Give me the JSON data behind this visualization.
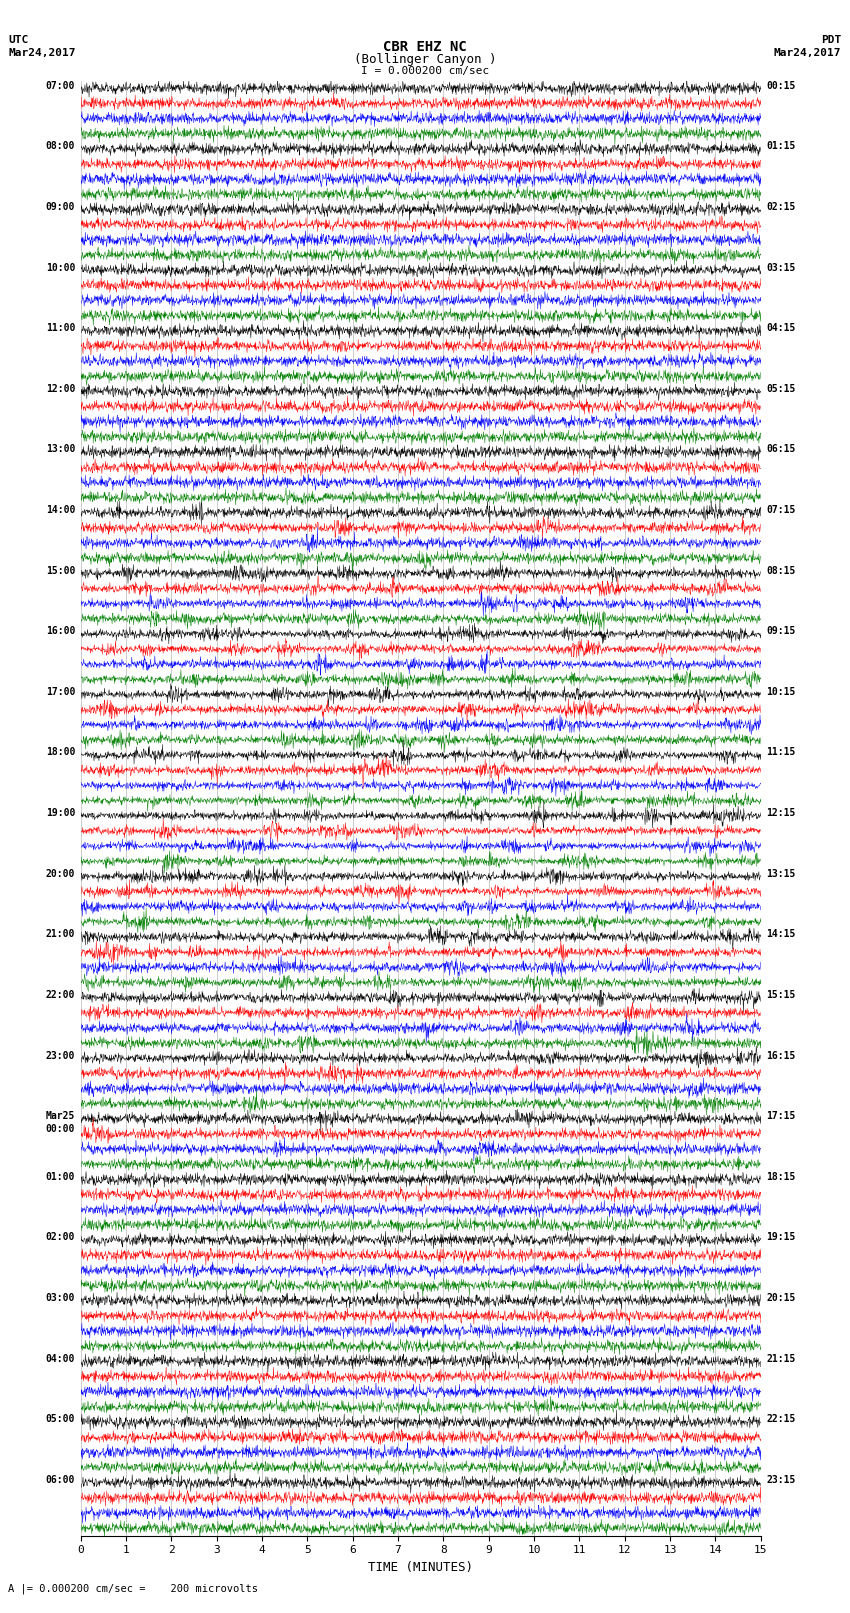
{
  "title_line1": "CBR EHZ NC",
  "title_line2": "(Bollinger Canyon )",
  "scale_text": "I = 0.000200 cm/sec",
  "left_header_line1": "UTC",
  "left_header_line2": "Mar24,2017",
  "right_header_line1": "PDT",
  "right_header_line2": "Mar24,2017",
  "xlabel": "TIME (MINUTES)",
  "footer_text": "A |= 0.000200 cm/sec =    200 microvolts",
  "colors": [
    "black",
    "red",
    "blue",
    "green"
  ],
  "background_color": "white",
  "xlim": [
    0,
    15
  ],
  "xticks": [
    0,
    1,
    2,
    3,
    4,
    5,
    6,
    7,
    8,
    9,
    10,
    11,
    12,
    13,
    14,
    15
  ],
  "fig_width": 8.5,
  "fig_height": 16.13,
  "dpi": 100,
  "num_hours": 24,
  "traces_per_hour": 4,
  "left_label_times": [
    "07:00",
    "08:00",
    "09:00",
    "10:00",
    "11:00",
    "12:00",
    "13:00",
    "14:00",
    "15:00",
    "16:00",
    "17:00",
    "18:00",
    "19:00",
    "20:00",
    "21:00",
    "22:00",
    "23:00",
    "Mar25\n00:00",
    "01:00",
    "02:00",
    "03:00",
    "04:00",
    "05:00",
    "06:00"
  ],
  "right_label_times": [
    "00:15",
    "01:15",
    "02:15",
    "03:15",
    "04:15",
    "05:15",
    "06:15",
    "07:15",
    "08:15",
    "09:15",
    "10:15",
    "11:15",
    "12:15",
    "13:15",
    "14:15",
    "15:15",
    "16:15",
    "17:15",
    "18:15",
    "19:15",
    "20:15",
    "21:15",
    "22:15",
    "23:15"
  ],
  "hour_amplitudes": [
    0.025,
    0.02,
    0.018,
    0.02,
    0.022,
    0.025,
    0.06,
    0.12,
    0.2,
    0.28,
    0.34,
    0.38,
    0.36,
    0.3,
    0.22,
    0.16,
    0.12,
    0.09,
    0.07,
    0.055,
    0.04,
    0.03,
    0.025,
    0.02
  ]
}
